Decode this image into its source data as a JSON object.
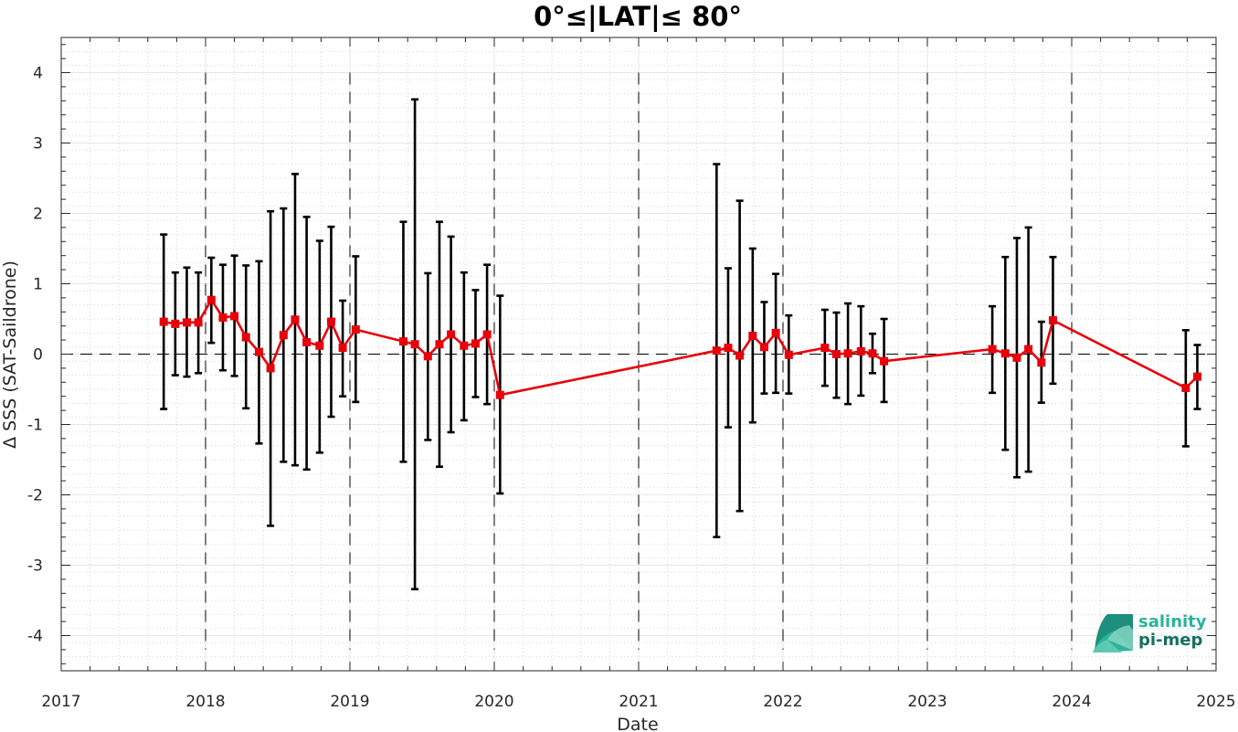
{
  "chart_data": {
    "type": "line",
    "title": "0°≤|LAT|≤ 80°",
    "xlabel": "Date",
    "ylabel": "Δ SSS (SAT-Saildrone)",
    "xlim": [
      2017,
      2025
    ],
    "ylim": [
      -4.5,
      4.5
    ],
    "x_ticks": [
      "2017",
      "2018",
      "2019",
      "2020",
      "2021",
      "2022",
      "2023",
      "2024",
      "2025"
    ],
    "y_ticks": [
      "4",
      "3",
      "2",
      "1",
      "0",
      "-1",
      "-2",
      "-3",
      "-4"
    ],
    "grid": true,
    "minor_grid": true,
    "year_markers": [
      2018,
      2019,
      2020,
      2021,
      2022,
      2023,
      2024
    ],
    "reference_line": 0,
    "series": [
      {
        "color": "#e8000b",
        "x": [
          2017.71,
          2017.79,
          2017.87,
          2017.95,
          2018.04,
          2018.12,
          2018.2,
          2018.28,
          2018.37,
          2018.45,
          2018.54,
          2018.62,
          2018.7,
          2018.79,
          2018.87,
          2018.95,
          2019.04,
          2019.37,
          2019.45,
          2019.54,
          2019.62,
          2019.7,
          2019.79,
          2019.87,
          2019.95,
          2020.04,
          2021.54,
          2021.62,
          2021.7,
          2021.79,
          2021.87,
          2021.95,
          2022.04,
          2022.29,
          2022.37,
          2022.45,
          2022.54,
          2022.62,
          2022.7,
          2023.45,
          2023.54,
          2023.62,
          2023.7,
          2023.79,
          2023.87,
          2024.79,
          2024.87
        ],
        "y": [
          0.46,
          0.43,
          0.45,
          0.45,
          0.77,
          0.52,
          0.54,
          0.24,
          0.03,
          -0.2,
          0.27,
          0.49,
          0.17,
          0.12,
          0.46,
          0.09,
          0.35,
          0.18,
          0.14,
          -0.03,
          0.14,
          0.28,
          0.12,
          0.15,
          0.28,
          -0.58,
          0.05,
          0.09,
          -0.02,
          0.26,
          0.1,
          0.3,
          -0.01,
          0.09,
          0.0,
          0.01,
          0.04,
          0.01,
          -0.1,
          0.07,
          0.01,
          -0.05,
          0.07,
          -0.12,
          0.48,
          -0.48,
          -0.32
        ],
        "lower": [
          -0.78,
          -0.3,
          -0.32,
          -0.27,
          0.16,
          -0.23,
          -0.31,
          -0.77,
          -1.27,
          -2.44,
          -1.53,
          -1.58,
          -1.64,
          -1.4,
          -0.89,
          -0.6,
          -0.68,
          -1.53,
          -3.34,
          -1.22,
          -1.6,
          -1.11,
          -0.94,
          -0.61,
          -0.71,
          -1.98,
          -2.6,
          -1.04,
          -2.23,
          -0.97,
          -0.56,
          -0.55,
          -0.56,
          -0.45,
          -0.62,
          -0.71,
          -0.59,
          -0.27,
          -0.68,
          -0.55,
          -1.36,
          -1.75,
          -1.67,
          -0.69,
          -0.42,
          -1.31,
          -0.78
        ],
        "upper": [
          1.7,
          1.16,
          1.23,
          1.16,
          1.37,
          1.27,
          1.4,
          1.26,
          1.32,
          2.03,
          2.07,
          2.56,
          1.95,
          1.61,
          1.81,
          0.76,
          1.39,
          1.88,
          3.62,
          1.15,
          1.88,
          1.67,
          1.16,
          0.91,
          1.27,
          0.83,
          2.7,
          1.22,
          2.18,
          1.5,
          0.74,
          1.14,
          0.55,
          0.63,
          0.59,
          0.72,
          0.68,
          0.29,
          0.5,
          0.68,
          1.38,
          1.65,
          1.8,
          0.46,
          1.38,
          0.34,
          0.13
        ]
      }
    ]
  },
  "logo": {
    "line1": "salinity",
    "line2": "pi-mep",
    "color_line1": "#2bb39a",
    "color_line2": "#13705f"
  }
}
